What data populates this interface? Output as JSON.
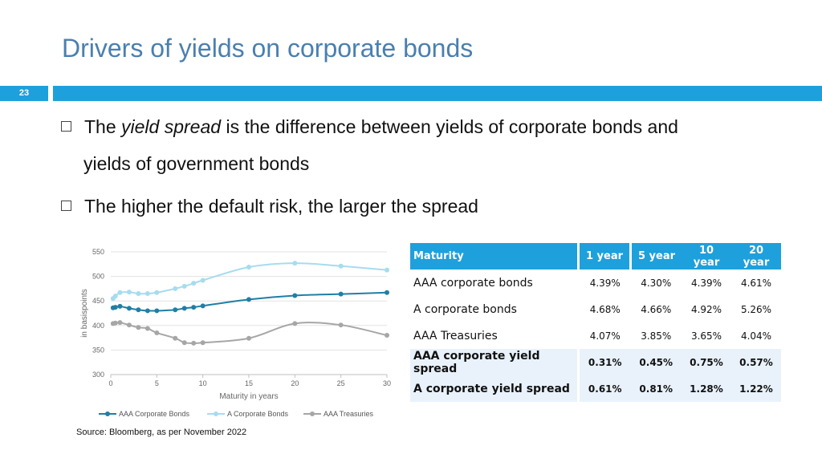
{
  "slide": {
    "title": "Drivers of yields on corporate bonds",
    "number": "23",
    "source": "Source: Bloomberg, as per November 2022"
  },
  "bullets": {
    "b1_pre": "The ",
    "b1_em": "yield spread",
    "b1_post": " is the difference between yields of corporate bonds and",
    "b1_cont": "yields of government bonds",
    "b2": "The higher the default risk, the larger the spread"
  },
  "table": {
    "headers": [
      "Maturity",
      "1 year",
      "5 year",
      "10 year",
      "20 year"
    ],
    "rows": [
      {
        "label": "AAA corporate bonds",
        "values": [
          "4.39%",
          "4.30%",
          "4.39%",
          "4.61%"
        ]
      },
      {
        "label": "A corporate bonds",
        "values": [
          "4.68%",
          "4.66%",
          "4.92%",
          "5.26%"
        ]
      },
      {
        "label": "AAA Treasuries",
        "values": [
          "4.07%",
          "3.85%",
          "3.65%",
          "4.04%"
        ]
      },
      {
        "label": "AAA corporate yield spread",
        "values": [
          "0.31%",
          "0.45%",
          "0.75%",
          "0.57%"
        ]
      },
      {
        "label": "A corporate yield spread",
        "values": [
          "0.61%",
          "0.81%",
          "1.28%",
          "1.22%"
        ]
      }
    ]
  },
  "chart_data": {
    "type": "line",
    "xlabel": "Maturity in years",
    "ylabel": "in basispoints",
    "xlim": [
      0,
      30
    ],
    "ylim": [
      300,
      550
    ],
    "xticks": [
      "0",
      "5",
      "10",
      "15",
      "20",
      "25",
      "30"
    ],
    "yticks": [
      "300",
      "350",
      "400",
      "450",
      "500",
      "550"
    ],
    "grid": true,
    "legend_position": "bottom",
    "series": [
      {
        "name": "AAA Corporate Bonds",
        "color": "#1f7fa6",
        "x": [
          0.25,
          0.5,
          1,
          2,
          3,
          4,
          5,
          7,
          8,
          9,
          10,
          15,
          20,
          25,
          30
        ],
        "y": [
          436,
          437,
          439,
          435,
          432,
          430,
          430,
          432,
          435,
          437,
          440,
          453,
          461,
          464,
          467
        ]
      },
      {
        "name": "A Corporate Bonds",
        "color": "#a6dcef",
        "x": [
          0.25,
          0.5,
          1,
          2,
          3,
          4,
          5,
          7,
          8,
          9,
          10,
          15,
          20,
          25,
          30
        ],
        "y": [
          455,
          460,
          467,
          468,
          465,
          465,
          467,
          475,
          480,
          486,
          492,
          519,
          527,
          521,
          513
        ]
      },
      {
        "name": "AAA Treasuries",
        "color": "#a6a6a6",
        "x": [
          0.25,
          0.5,
          1,
          2,
          3,
          4,
          5,
          7,
          8,
          9,
          10,
          15,
          20,
          25,
          30
        ],
        "y": [
          404,
          405,
          406,
          401,
          396,
          394,
          385,
          374,
          365,
          364,
          365,
          374,
          404,
          401,
          380
        ]
      }
    ]
  }
}
